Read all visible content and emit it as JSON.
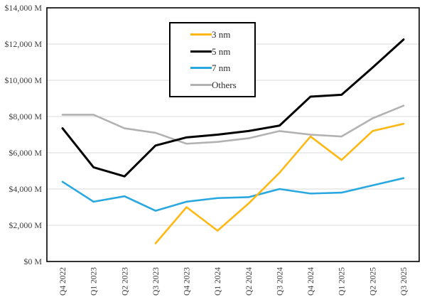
{
  "chart_data": {
    "type": "line",
    "title": "",
    "xlabel": "",
    "ylabel": "",
    "categories": [
      "Q4 2022",
      "Q1 2023",
      "Q2 2023",
      "Q3 2023",
      "Q4 2023",
      "Q1 2024",
      "Q2 2024",
      "Q3 2024",
      "Q4 2024",
      "Q1 2025",
      "Q2 2025",
      "Q3 2025"
    ],
    "series": [
      {
        "name": "3 nm",
        "color": "#FDB813",
        "draw_order": 2,
        "values": [
          null,
          null,
          null,
          1000,
          3000,
          1700,
          3200,
          4900,
          6900,
          5600,
          7200,
          7600
        ]
      },
      {
        "name": "5 nm",
        "color": "#000000",
        "draw_order": 4,
        "values": [
          7350,
          5200,
          4700,
          6400,
          6850,
          7000,
          7200,
          7500,
          9100,
          9200,
          10700,
          12250
        ]
      },
      {
        "name": "7 nm",
        "color": "#29A8E0",
        "draw_order": 1,
        "values": [
          4400,
          3300,
          3600,
          2800,
          3300,
          3500,
          3550,
          4000,
          3750,
          3800,
          4200,
          4600
        ]
      },
      {
        "name": "Others",
        "color": "#B2B2B2",
        "draw_order": 3,
        "values": [
          8100,
          8100,
          7350,
          7100,
          6500,
          6600,
          6800,
          7200,
          7000,
          6900,
          7900,
          8600
        ]
      }
    ],
    "ylim": [
      0,
      14000
    ],
    "y_tick_step": 2000,
    "y_tick_labels": [
      "$0 M",
      "$2,000 M",
      "$4,000 M",
      "$6,000 M",
      "$8,000 M",
      "$10,000 M",
      "$12,000 M",
      "$14,000 M"
    ],
    "grid": true,
    "legend_position": "inside-top-center",
    "units": "USD millions"
  },
  "style": {
    "gridline_color": "#d8d8d8",
    "frame_color": "#000000",
    "tick_text_color": "#3d3d3d",
    "background_color": "#ffffff"
  }
}
